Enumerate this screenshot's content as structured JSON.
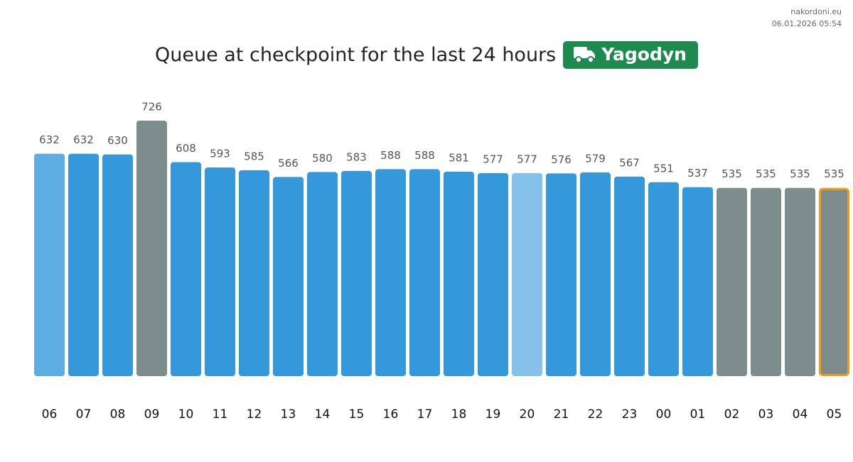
{
  "chart_data": {
    "type": "bar",
    "site": "nakordoni.eu",
    "timestamp": "06.01.2026 05:54",
    "title": "Queue at checkpoint for the last 24 hours",
    "checkpoint": "Yagodyn",
    "categories": [
      "06",
      "07",
      "08",
      "09",
      "10",
      "11",
      "12",
      "13",
      "14",
      "15",
      "16",
      "17",
      "18",
      "19",
      "20",
      "21",
      "22",
      "23",
      "00",
      "01",
      "02",
      "03",
      "04",
      "05"
    ],
    "values": [
      632,
      632,
      630,
      726,
      608,
      593,
      585,
      566,
      580,
      583,
      588,
      588,
      581,
      577,
      577,
      576,
      579,
      567,
      551,
      537,
      535,
      535,
      535,
      535
    ],
    "colors": [
      "#5dade2",
      "#3498db",
      "#3498db",
      "#7f8c8d",
      "#3498db",
      "#3498db",
      "#3498db",
      "#3498db",
      "#3498db",
      "#3498db",
      "#3498db",
      "#3498db",
      "#3498db",
      "#3498db",
      "#85c1e9",
      "#3498db",
      "#3498db",
      "#3498db",
      "#3498db",
      "#3498db",
      "#7f8c8d",
      "#7f8c8d",
      "#7f8c8d",
      "#7f8c8d"
    ],
    "edgecolors": [
      null,
      null,
      null,
      null,
      null,
      null,
      null,
      null,
      null,
      null,
      null,
      null,
      null,
      null,
      null,
      null,
      null,
      null,
      null,
      null,
      null,
      null,
      null,
      "#f39c12"
    ]
  }
}
